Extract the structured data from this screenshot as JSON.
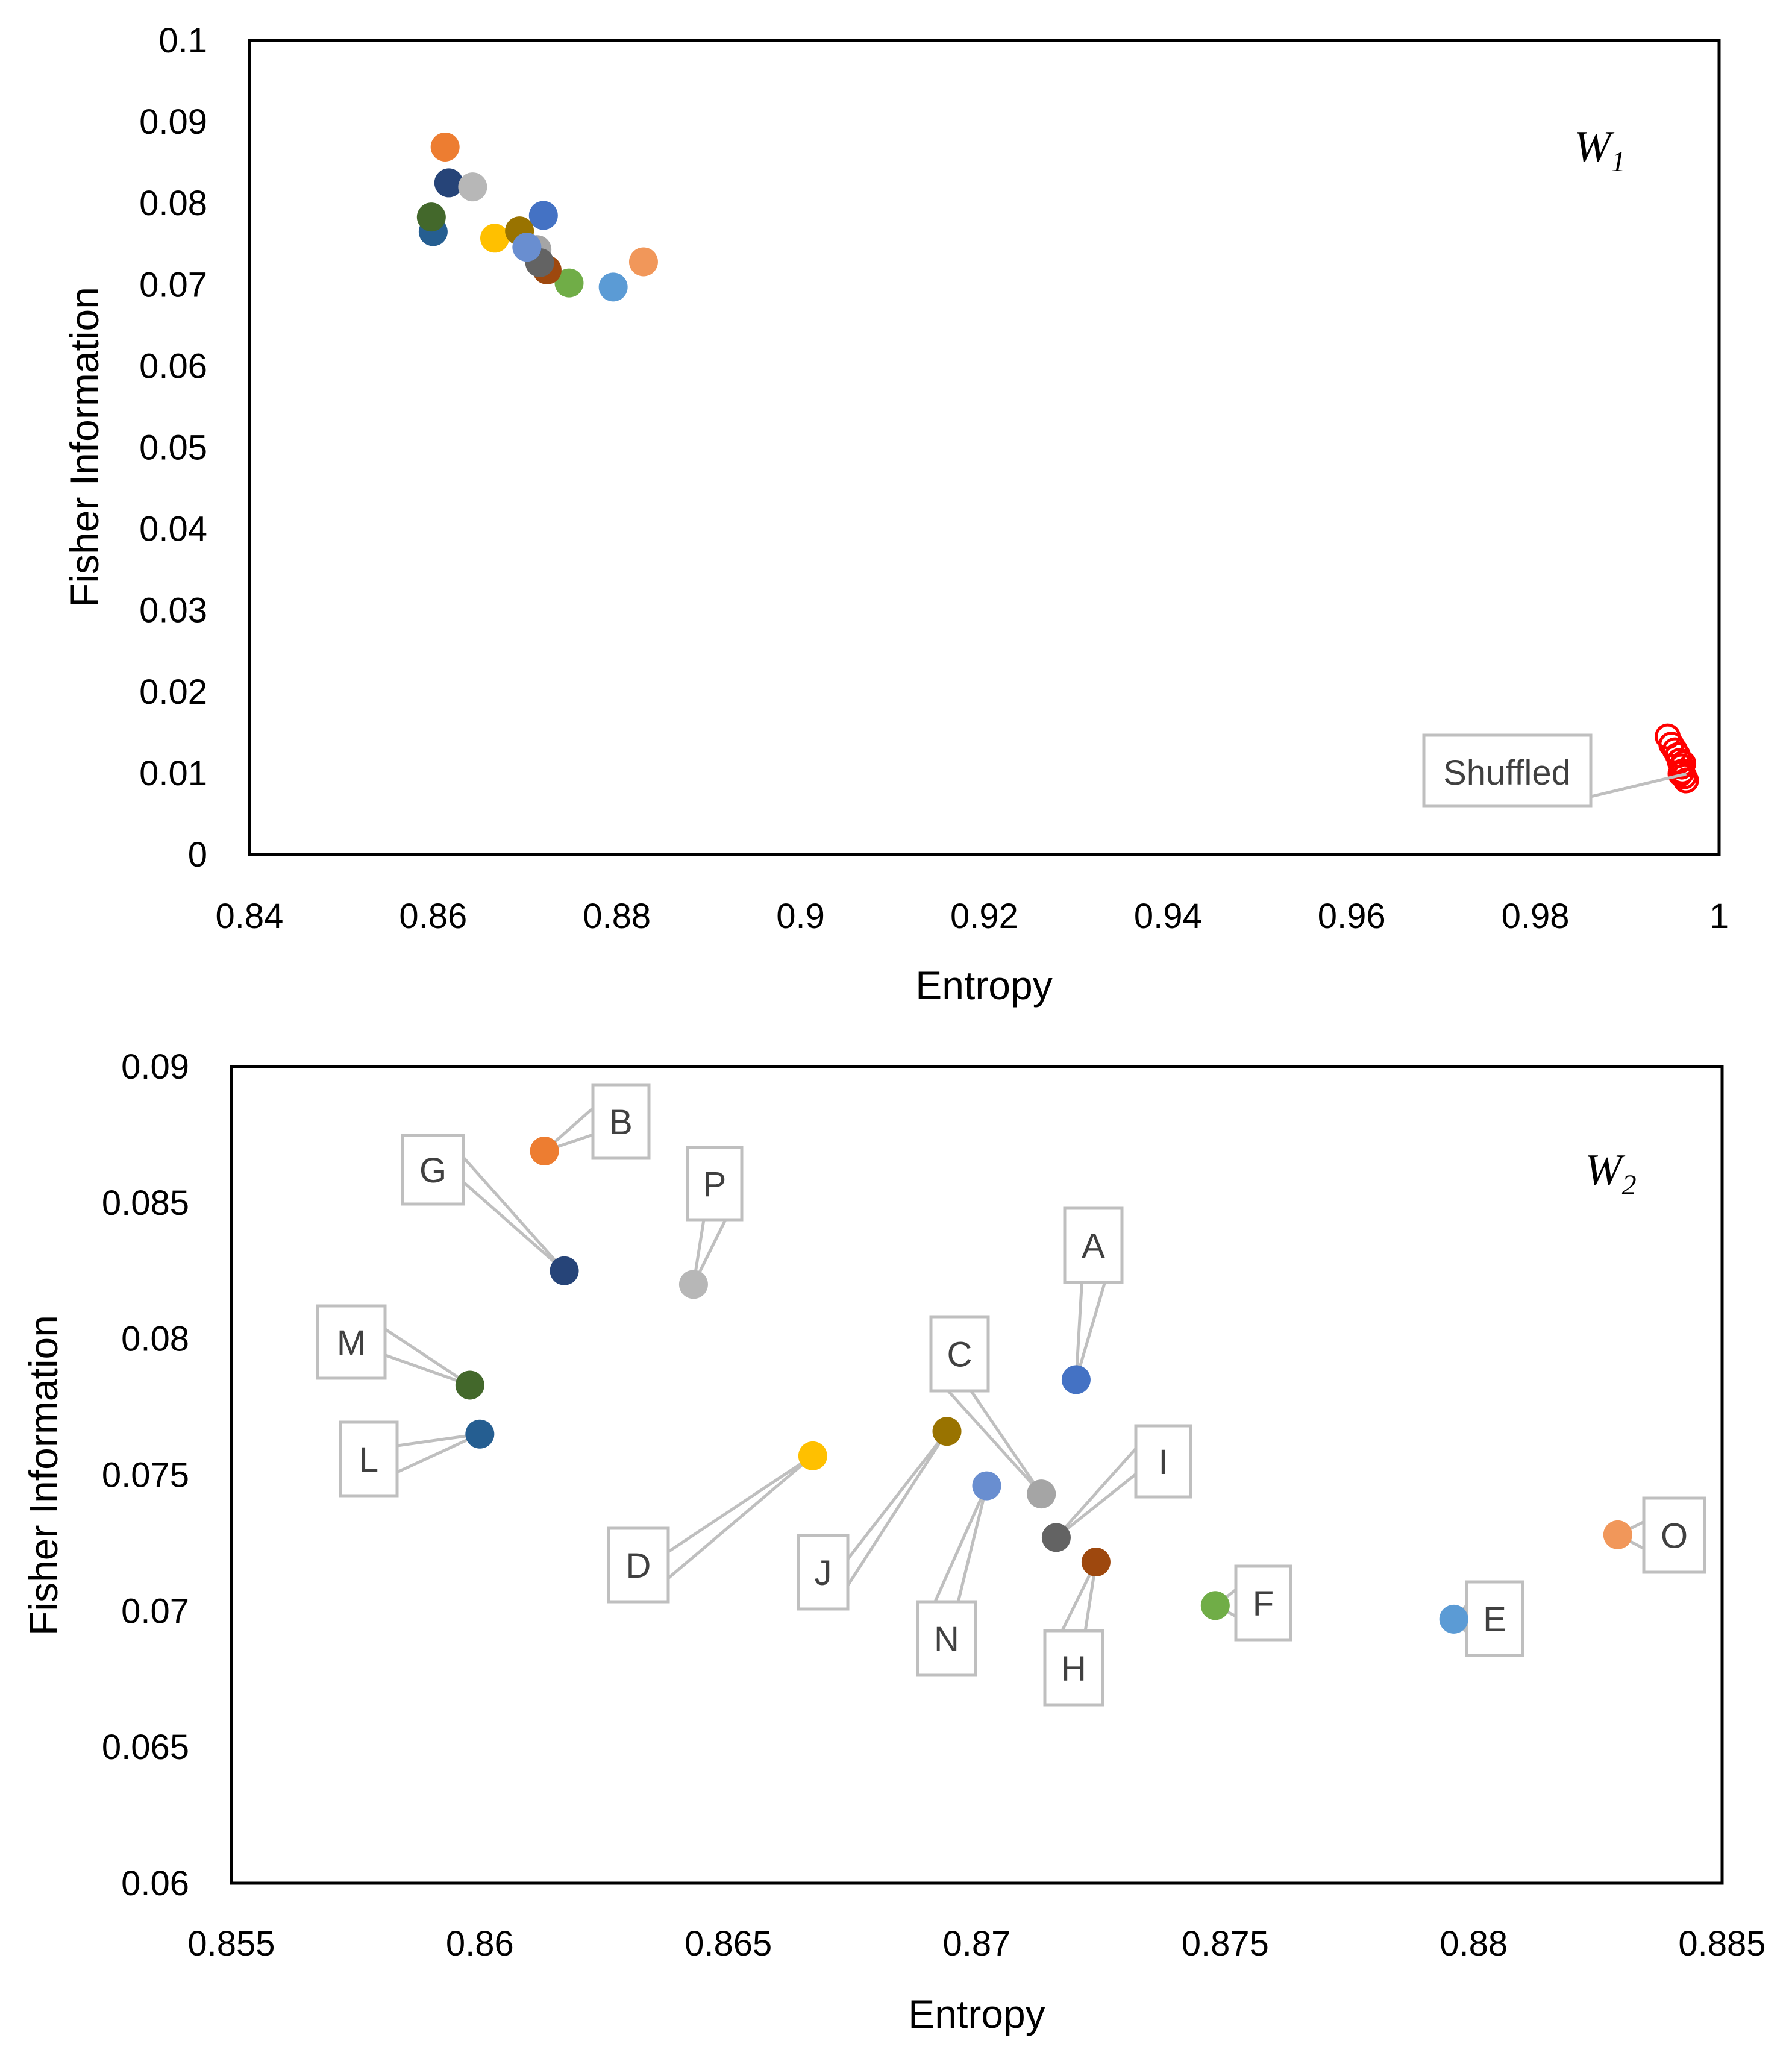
{
  "chart_data": [
    {
      "type": "scatter",
      "panel_label": "W",
      "panel_subscript": "1",
      "xlabel": "Entropy",
      "ylabel": "Fisher Information",
      "xlim": [
        0.84,
        1
      ],
      "ylim": [
        0,
        0.1
      ],
      "x_ticks": [
        0.84,
        0.86,
        0.88,
        0.9,
        0.92,
        0.94,
        0.96,
        0.98,
        1
      ],
      "x_tick_labels": [
        "0.84",
        "0.86",
        "0.88",
        "0.9",
        "0.92",
        "0.94",
        "0.96",
        "0.98",
        "1"
      ],
      "y_ticks": [
        0,
        0.01,
        0.02,
        0.03,
        0.04,
        0.05,
        0.06,
        0.07,
        0.08,
        0.09,
        0.1
      ],
      "y_tick_labels": [
        "0",
        "0.01",
        "0.02",
        "0.03",
        "0.04",
        "0.05",
        "0.06",
        "0.07",
        "0.08",
        "0.09",
        "0.1"
      ],
      "points": [
        {
          "name": "A",
          "x": 0.872,
          "y": 0.0785,
          "color": "#4472c4"
        },
        {
          "name": "B",
          "x": 0.8613,
          "y": 0.0869,
          "color": "#ed7d31"
        },
        {
          "name": "C",
          "x": 0.8713,
          "y": 0.0743,
          "color": "#a5a5a5"
        },
        {
          "name": "D",
          "x": 0.8667,
          "y": 0.0757,
          "color": "#ffc000"
        },
        {
          "name": "E",
          "x": 0.8796,
          "y": 0.0697,
          "color": "#5b9bd5"
        },
        {
          "name": "F",
          "x": 0.8748,
          "y": 0.0702,
          "color": "#70ad47"
        },
        {
          "name": "G",
          "x": 0.8617,
          "y": 0.0825,
          "color": "#264478"
        },
        {
          "name": "H",
          "x": 0.8724,
          "y": 0.0718,
          "color": "#9e480e"
        },
        {
          "name": "I",
          "x": 0.8716,
          "y": 0.0727,
          "color": "#636363"
        },
        {
          "name": "J",
          "x": 0.8694,
          "y": 0.0766,
          "color": "#997300"
        },
        {
          "name": "L",
          "x": 0.86,
          "y": 0.0765,
          "color": "#255e91"
        },
        {
          "name": "M",
          "x": 0.8598,
          "y": 0.0783,
          "color": "#43682b"
        },
        {
          "name": "N",
          "x": 0.8702,
          "y": 0.0746,
          "color": "#698ed0"
        },
        {
          "name": "O",
          "x": 0.8829,
          "y": 0.0728,
          "color": "#f1975a"
        },
        {
          "name": "P",
          "x": 0.8643,
          "y": 0.082,
          "color": "#b7b7b7"
        }
      ],
      "shuffled_points": [
        {
          "x": 0.9944,
          "y": 0.0145
        },
        {
          "x": 0.9948,
          "y": 0.0135
        },
        {
          "x": 0.9952,
          "y": 0.0128
        },
        {
          "x": 0.9955,
          "y": 0.0122
        },
        {
          "x": 0.9957,
          "y": 0.0115
        },
        {
          "x": 0.9959,
          "y": 0.0108
        },
        {
          "x": 0.996,
          "y": 0.0102
        },
        {
          "x": 0.9962,
          "y": 0.0096
        },
        {
          "x": 0.9964,
          "y": 0.0091
        },
        {
          "x": 0.9961,
          "y": 0.0112
        },
        {
          "x": 0.9958,
          "y": 0.0099
        }
      ],
      "shuffled_color": "#ff0000",
      "shuffled_label": "Shuffled"
    },
    {
      "type": "scatter",
      "panel_label": "W",
      "panel_subscript": "2",
      "xlabel": "Entropy",
      "ylabel": "Fisher Information",
      "xlim": [
        0.855,
        0.885
      ],
      "ylim": [
        0.06,
        0.09
      ],
      "x_ticks": [
        0.855,
        0.86,
        0.865,
        0.87,
        0.875,
        0.88,
        0.885
      ],
      "x_tick_labels": [
        "0.855",
        "0.86",
        "0.865",
        "0.87",
        "0.875",
        "0.88",
        "0.885"
      ],
      "y_ticks": [
        0.06,
        0.065,
        0.07,
        0.075,
        0.08,
        0.085,
        0.09
      ],
      "y_tick_labels": [
        "0.06",
        "0.065",
        "0.07",
        "0.075",
        "0.08",
        "0.085",
        "0.09"
      ],
      "points": [
        {
          "name": "A",
          "x": 0.872,
          "y": 0.0785,
          "color": "#4472c4"
        },
        {
          "name": "B",
          "x": 0.8613,
          "y": 0.0869,
          "color": "#ed7d31"
        },
        {
          "name": "C",
          "x": 0.8713,
          "y": 0.0743,
          "color": "#a5a5a5"
        },
        {
          "name": "D",
          "x": 0.8667,
          "y": 0.0757,
          "color": "#ffc000"
        },
        {
          "name": "E",
          "x": 0.8796,
          "y": 0.0697,
          "color": "#5b9bd5"
        },
        {
          "name": "F",
          "x": 0.8748,
          "y": 0.0702,
          "color": "#70ad47"
        },
        {
          "name": "G",
          "x": 0.8617,
          "y": 0.0825,
          "color": "#264478"
        },
        {
          "name": "H",
          "x": 0.8724,
          "y": 0.0718,
          "color": "#9e480e"
        },
        {
          "name": "I",
          "x": 0.8716,
          "y": 0.0727,
          "color": "#636363"
        },
        {
          "name": "J",
          "x": 0.8694,
          "y": 0.0766,
          "color": "#997300"
        },
        {
          "name": "L",
          "x": 0.86,
          "y": 0.0765,
          "color": "#255e91"
        },
        {
          "name": "M",
          "x": 0.8598,
          "y": 0.0783,
          "color": "#43682b"
        },
        {
          "name": "N",
          "x": 0.8702,
          "y": 0.0746,
          "color": "#698ed0"
        },
        {
          "name": "O",
          "x": 0.8829,
          "y": 0.0728,
          "color": "#f1975a"
        },
        {
          "name": "P",
          "x": 0.8643,
          "y": 0.082,
          "color": "#b7b7b7"
        }
      ]
    }
  ]
}
